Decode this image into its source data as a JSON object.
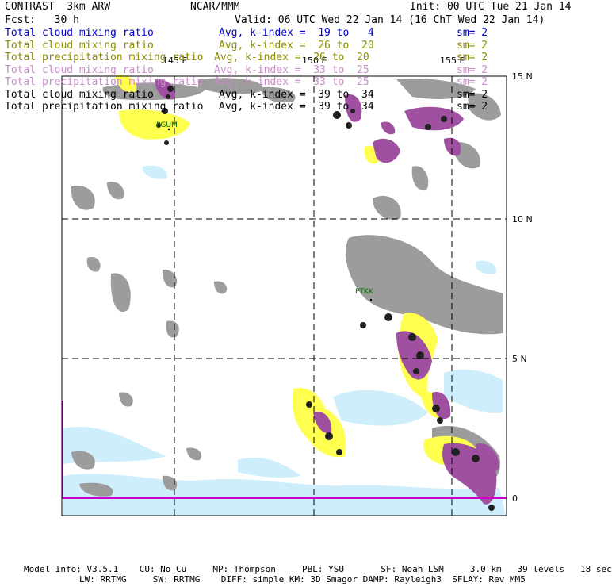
{
  "header": {
    "model": "CONTRAST  3km ARW",
    "org": "NCAR/MMM",
    "init": "Init: 00 UTC Tue 21 Jan 14",
    "fcst": "Fcst:   30 h",
    "valid": "Valid: 06 UTC Wed 22 Jan 14 (16 ChT Wed 22 Jan 14)"
  },
  "fields": [
    {
      "name": "Total cloud mixing ratio",
      "kindex": "Avg, k-index =  19 to   4",
      "sm": "sm= 2",
      "color": "#0000c8"
    },
    {
      "name": "Total cloud mixing ratio",
      "kindex": "Avg, k-index =  26 to  20",
      "sm": "sm= 2",
      "color": "#8c8c00"
    },
    {
      "name": "Total precipitation mixing ratio",
      "kindex": "Avg, k-index =  26 to  20",
      "sm": "sm= 2",
      "color": "#8c8c00"
    },
    {
      "name": "Total cloud mixing ratio",
      "kindex": "Avg, k-index =  33 to  25",
      "sm": "sm= 2",
      "color": "#c88cc8"
    },
    {
      "name": "Total precipitation mixing ratio",
      "kindex": "Avg, k-index =  33 to  25",
      "sm": "sm= 2",
      "color": "#c88cc8"
    },
    {
      "name": "Total cloud mixing ratio",
      "kindex": "Avg, k-index =  39 to  34",
      "sm": "sm= 2",
      "color": "#000000"
    },
    {
      "name": "Total precipitation mixing ratio",
      "kindex": "Avg, k-index =  39 to  34",
      "sm": "sm= 2",
      "color": "#000000"
    }
  ],
  "map": {
    "lon_labels": [
      "145 E",
      "150 E",
      "155 E"
    ],
    "lat_labels": [
      "15 N",
      "10 N",
      "5 N",
      "0"
    ],
    "stations": [
      "PGUM",
      "PTKK"
    ],
    "colors": {
      "light_cloud": "#cfeefc",
      "gray_cloud": "#9c9c9c",
      "yellow": "#ffff50",
      "purple": "#a050a0",
      "dark": "#202020",
      "grid": "#000000",
      "equator_line": "#c800c8",
      "station_text": "#006400"
    }
  },
  "footer": {
    "line1": "Model Info: V3.5.1    CU: No Cu     MP: Thompson     PBL: YSU       SF: Noah LSM     3.0 km   39 levels   18 sec",
    "line2": "LW: RRTMG     SW: RRTMG    DIFF: simple KM: 3D Smagor DAMP: Rayleigh3  SFLAY: Rev MM5"
  }
}
